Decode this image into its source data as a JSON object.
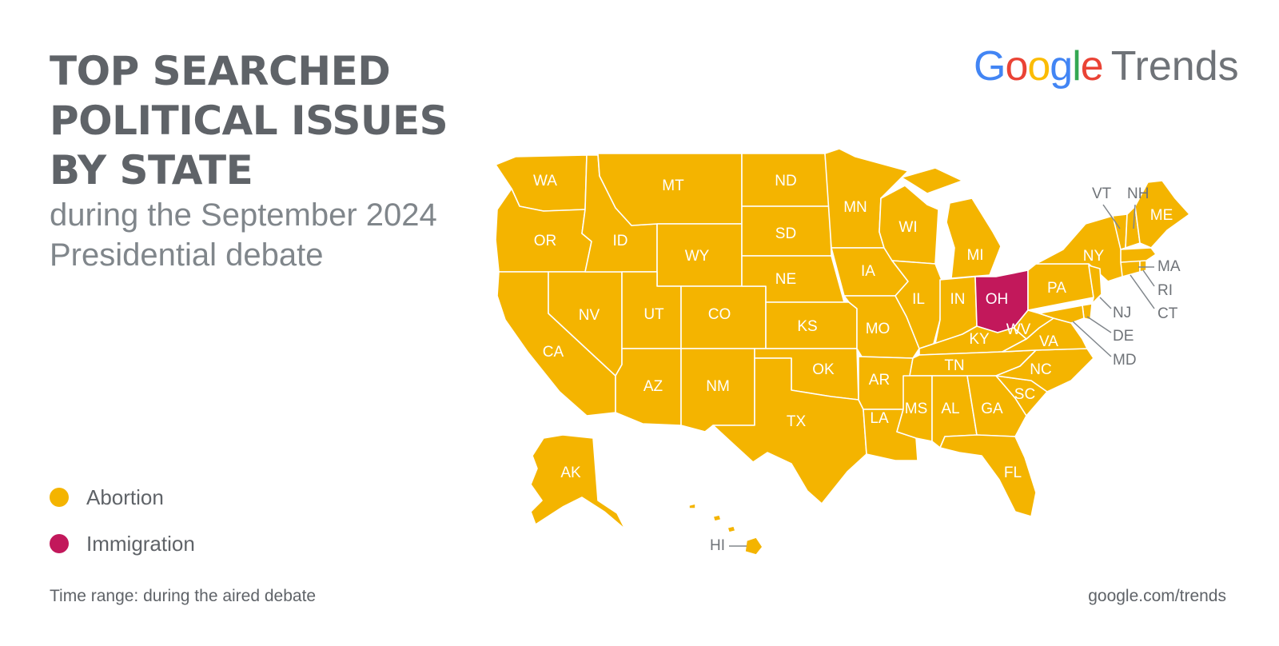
{
  "title": "TOP SEARCHED POLITICAL ISSUES BY STATE",
  "subtitle": "during the September 2024 Presidential debate",
  "logo": {
    "letters": [
      {
        "char": "G",
        "color": "#4285F4"
      },
      {
        "char": "o",
        "color": "#EA4335"
      },
      {
        "char": "o",
        "color": "#FBBC05"
      },
      {
        "char": "g",
        "color": "#4285F4"
      },
      {
        "char": "l",
        "color": "#34A853"
      },
      {
        "char": "e",
        "color": "#EA4335"
      }
    ],
    "product": "Trends"
  },
  "legend": [
    {
      "label": "Abortion",
      "color": "#F4B400"
    },
    {
      "label": "Immigration",
      "color": "#C2185B"
    }
  ],
  "footer": {
    "time_range": "Time range: during the aired debate",
    "source": "google.com/trends"
  },
  "states": {
    "WA": "Abortion",
    "OR": "Abortion",
    "CA": "Abortion",
    "NV": "Abortion",
    "ID": "Abortion",
    "MT": "Abortion",
    "WY": "Abortion",
    "UT": "Abortion",
    "AZ": "Abortion",
    "CO": "Abortion",
    "NM": "Abortion",
    "ND": "Abortion",
    "SD": "Abortion",
    "NE": "Abortion",
    "KS": "Abortion",
    "OK": "Abortion",
    "TX": "Abortion",
    "MN": "Abortion",
    "IA": "Abortion",
    "MO": "Abortion",
    "AR": "Abortion",
    "LA": "Abortion",
    "WI": "Abortion",
    "IL": "Abortion",
    "MI": "Abortion",
    "IN": "Abortion",
    "OH": "Immigration",
    "KY": "Abortion",
    "TN": "Abortion",
    "MS": "Abortion",
    "AL": "Abortion",
    "GA": "Abortion",
    "FL": "Abortion",
    "SC": "Abortion",
    "NC": "Abortion",
    "VA": "Abortion",
    "WV": "Abortion",
    "PA": "Abortion",
    "NY": "Abortion",
    "NJ": "Abortion",
    "DE": "Abortion",
    "MD": "Abortion",
    "CT": "Abortion",
    "RI": "Abortion",
    "MA": "Abortion",
    "VT": "Abortion",
    "NH": "Abortion",
    "ME": "Abortion",
    "AK": "Abortion",
    "HI": "Abortion"
  }
}
